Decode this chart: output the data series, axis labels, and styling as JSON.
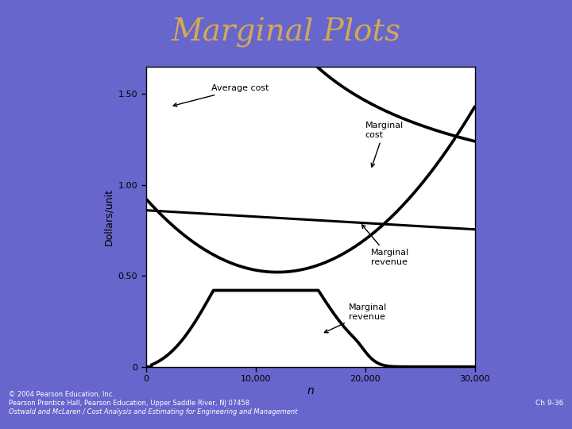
{
  "title": "Marginal Plots",
  "title_color": "#D4A855",
  "bg_color": "#6666CC",
  "plot_bg_color": "#FFFFFF",
  "xlabel": "n",
  "ylabel": "Dollars/unit",
  "xlim": [
    0,
    30000
  ],
  "ylim": [
    0,
    1.65
  ],
  "xticks": [
    0,
    10000,
    20000,
    30000
  ],
  "xtick_labels": [
    "0",
    "10,000",
    "20,000",
    "30,000"
  ],
  "yticks": [
    0,
    0.5,
    1.0,
    1.5
  ],
  "ytick_labels": [
    "0",
    "0.50",
    "1.00",
    "1.50"
  ],
  "footer_line1": "© 2004 Pearson Education, Inc.",
  "footer_line2": "Pearson Prentice Hall, Pearson Education, Upper Saddle River, NJ 07458",
  "footer_line3": "Ostwald and McLaren / Cost Analysis and Estimating for Engineering and Management",
  "footer_right": "Ch 9-36",
  "line_color": "#000000",
  "curve_lw": 2.2
}
